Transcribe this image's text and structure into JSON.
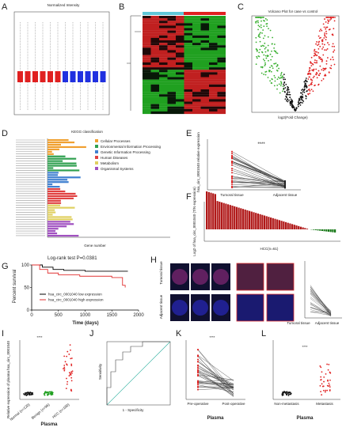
{
  "panels": {
    "A": {
      "label": "A",
      "title": "Normalized Intensity"
    },
    "B": {
      "label": "B"
    },
    "C": {
      "label": "C",
      "title": "Volcano Plot for case vs control",
      "x_label": "log2(Fold Change)"
    },
    "D": {
      "label": "D",
      "title": "KEGG classification",
      "x_label": "Gene number",
      "legend": [
        "Cellular Processes",
        "Environmental Information Processing",
        "Genetic Information Processing",
        "Human Diseases",
        "Metabolism",
        "Organismal Systems"
      ]
    },
    "E": {
      "label": "E",
      "y_label": "hsa_circ_0001040 relative expression",
      "significance": "****",
      "categories": [
        "Tumoral tissue",
        "Adjacent tissue"
      ]
    },
    "F": {
      "label": "F",
      "y_label": "Log2 of hsa_circ_0001040 (T/N expression)",
      "x_label": "HCC(n=61)"
    },
    "H": {
      "label": "H",
      "row_labels": [
        "Tumoral tissue",
        "Adjacent tissue"
      ],
      "categories": [
        "Tumoral tissue",
        "Adjacent tissue"
      ]
    },
    "I": {
      "label": "I",
      "y_label": "Relative expression of plasma hsa_circ_0001040",
      "categories": [
        "Normal (n=120)",
        "Benign (n=96)",
        "HCC (n=180)"
      ],
      "x_label": "Plasma",
      "significance": "****"
    },
    "J": {
      "label": "J",
      "y_label": "Sensitivity",
      "x_label": "1 - Specificity"
    },
    "K": {
      "label": "K",
      "categories": [
        "Pre-operative",
        "Post-operative"
      ],
      "x_label": "Plasma",
      "significance": "****"
    },
    "L": {
      "label": "L",
      "categories": [
        "Non-metastasis",
        "Metastasis"
      ],
      "x_label": "Plasma",
      "significance": "****"
    }
  },
  "chart_data": {
    "type": "line",
    "label": "G",
    "annotation": "Log-rank test P=0.0381",
    "y_label": "Percent survival",
    "x_label": "Time (days)",
    "xlim": [
      0,
      2000
    ],
    "xticks": [
      0,
      500,
      1000,
      1500,
      2000
    ],
    "ylim": [
      0,
      100
    ],
    "yticks": [
      0,
      50,
      100
    ],
    "series": [
      {
        "name": "hsa_circ_0001040 low expression",
        "color": "#000000",
        "x": [
          0,
          200,
          400,
          600,
          1000,
          1800
        ],
        "values": [
          100,
          95,
          90,
          88,
          86,
          86
        ]
      },
      {
        "name": "hsa_circ_0001040 high expression",
        "color": "#e03030",
        "x": [
          0,
          150,
          300,
          500,
          900,
          1500,
          1700,
          1750
        ],
        "values": [
          100,
          90,
          82,
          78,
          75,
          72,
          55,
          50
        ]
      }
    ]
  }
}
